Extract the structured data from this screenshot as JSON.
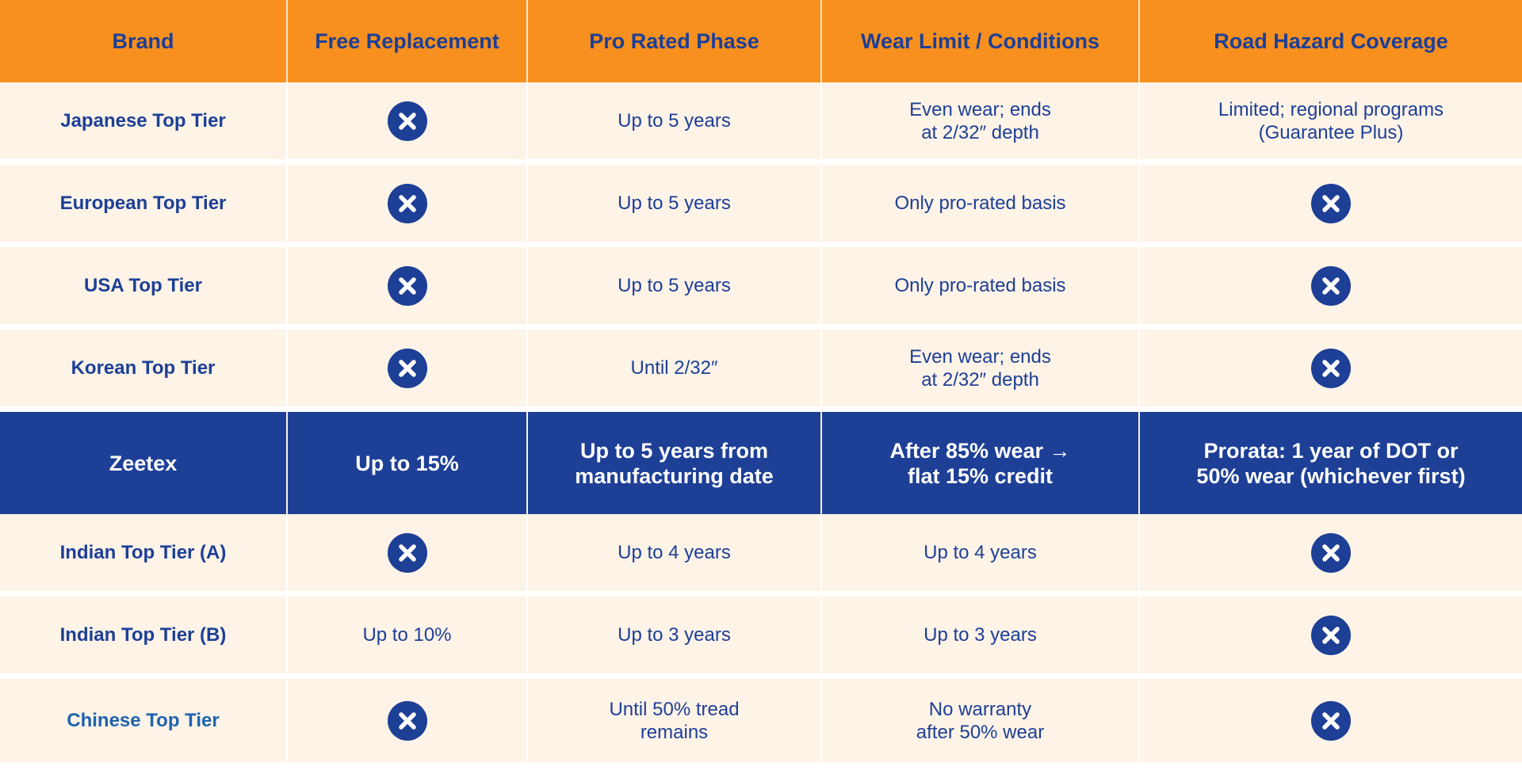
{
  "headers": [
    "Brand",
    "Free Replacement",
    "Pro Rated Phase",
    "Wear Limit / Conditions",
    "Road Hazard Coverage"
  ],
  "rows": [
    {
      "brand": "Japanese Top Tier",
      "free": null,
      "pro": "Up to 5 years",
      "wear": "Even wear; ends\nat 2/32″ depth",
      "road": "Limited; regional programs\n(Guarantee Plus)"
    },
    {
      "brand": "European Top Tier",
      "free": null,
      "pro": "Up to 5 years",
      "wear": "Only pro-rated basis",
      "road": null
    },
    {
      "brand": "USA Top Tier",
      "free": null,
      "pro": "Up to 5 years",
      "wear": "Only pro-rated basis",
      "road": null
    },
    {
      "brand": "Korean Top Tier",
      "free": null,
      "pro": "Until 2/32″",
      "wear": "Even wear; ends\nat 2/32″ depth",
      "road": null
    },
    {
      "brand": "Zeetex",
      "free": "Up to 15%",
      "pro": "Up to 5 years from\nmanufacturing date",
      "wear": "After 85% wear →\nflat 15% credit",
      "road": "Prorata: 1 year of DOT or\n50% wear (whichever first)"
    },
    {
      "brand": "Indian Top Tier (A)",
      "free": null,
      "pro": "Up to 4 years",
      "wear": "Up to 4 years",
      "road": null
    },
    {
      "brand": "Indian Top Tier (B)",
      "free": "Up to 10%",
      "pro": "Up to 3 years",
      "wear": "Up to 3 years",
      "road": null
    },
    {
      "brand": "Chinese Top Tier",
      "free": null,
      "pro": "Until 50% tread\nremains",
      "wear": "No warranty\nafter 50% wear",
      "road": null
    }
  ],
  "colors": {
    "header_bg": "#f7901e",
    "row_bg": "#fdf3e7",
    "highlight_bg": "#1d3f96",
    "text": "#1d3f96"
  },
  "icons": {
    "none": "x-circle-icon"
  }
}
